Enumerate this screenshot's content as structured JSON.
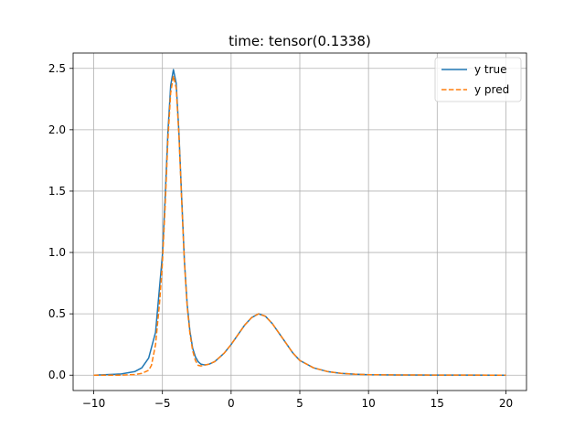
{
  "chart_data": {
    "type": "line",
    "title": "time: tensor(0.1338)",
    "xlabel": "",
    "ylabel": "",
    "xlim": [
      -11.5,
      21.5
    ],
    "ylim": [
      -0.125,
      2.625
    ],
    "grid": true,
    "legend_position": "upper right",
    "xticks": [
      -10,
      -5,
      0,
      5,
      10,
      15,
      20
    ],
    "xtick_labels": [
      "−10",
      "−5",
      "0",
      "5",
      "10",
      "15",
      "20"
    ],
    "yticks": [
      0.0,
      0.5,
      1.0,
      1.5,
      2.0,
      2.5
    ],
    "ytick_labels": [
      "0.0",
      "0.5",
      "1.0",
      "1.5",
      "2.0",
      "2.5"
    ],
    "series": [
      {
        "name": "y true",
        "color": "#1f77b4",
        "dash": "solid",
        "x": [
          -10,
          -8,
          -7,
          -6.5,
          -6,
          -5.5,
          -5,
          -4.8,
          -4.6,
          -4.4,
          -4.2,
          -4.0,
          -3.8,
          -3.6,
          -3.4,
          -3.2,
          -3.0,
          -2.8,
          -2.6,
          -2.4,
          -2.2,
          -2.0,
          -1.8,
          -1.6,
          -1.4,
          -1.2,
          -1.0,
          -0.5,
          0,
          0.5,
          1.0,
          1.5,
          2.0,
          2.5,
          3.0,
          3.5,
          4.0,
          4.5,
          5.0,
          6.0,
          7.0,
          8.0,
          9.0,
          10.0,
          12.0,
          15.0,
          20.0
        ],
        "y": [
          0.0,
          0.01,
          0.03,
          0.06,
          0.14,
          0.35,
          0.98,
          1.45,
          1.98,
          2.36,
          2.49,
          2.38,
          1.98,
          1.45,
          0.93,
          0.58,
          0.36,
          0.22,
          0.15,
          0.11,
          0.09,
          0.085,
          0.085,
          0.09,
          0.1,
          0.11,
          0.13,
          0.18,
          0.25,
          0.33,
          0.41,
          0.47,
          0.5,
          0.48,
          0.42,
          0.34,
          0.26,
          0.18,
          0.12,
          0.06,
          0.03,
          0.015,
          0.008,
          0.004,
          0.002,
          0.001,
          0.0
        ]
      },
      {
        "name": "y pred",
        "color": "#ff7f0e",
        "dash": "dashed",
        "x": [
          -10,
          -8,
          -7,
          -6.5,
          -6,
          -5.8,
          -5.5,
          -5.2,
          -5.0,
          -4.8,
          -4.6,
          -4.4,
          -4.2,
          -4.0,
          -3.8,
          -3.6,
          -3.4,
          -3.2,
          -3.0,
          -2.8,
          -2.6,
          -2.4,
          -2.2,
          -2.0,
          -1.8,
          -1.6,
          -1.4,
          -1.2,
          -1.0,
          -0.5,
          0,
          0.5,
          1.0,
          1.5,
          2.0,
          2.5,
          3.0,
          3.5,
          4.0,
          4.5,
          5.0,
          6.0,
          7.0,
          8.0,
          9.0,
          10.0,
          12.0,
          15.0,
          20.0
        ],
        "y": [
          0.0,
          0.0,
          0.005,
          0.015,
          0.04,
          0.08,
          0.25,
          0.6,
          0.92,
          1.38,
          1.92,
          2.3,
          2.44,
          2.34,
          1.96,
          1.42,
          0.92,
          0.56,
          0.34,
          0.2,
          0.12,
          0.08,
          0.075,
          0.08,
          0.085,
          0.09,
          0.1,
          0.11,
          0.13,
          0.18,
          0.25,
          0.33,
          0.41,
          0.47,
          0.5,
          0.48,
          0.42,
          0.34,
          0.26,
          0.18,
          0.12,
          0.06,
          0.03,
          0.015,
          0.008,
          0.004,
          0.002,
          0.001,
          0.0
        ]
      }
    ]
  }
}
